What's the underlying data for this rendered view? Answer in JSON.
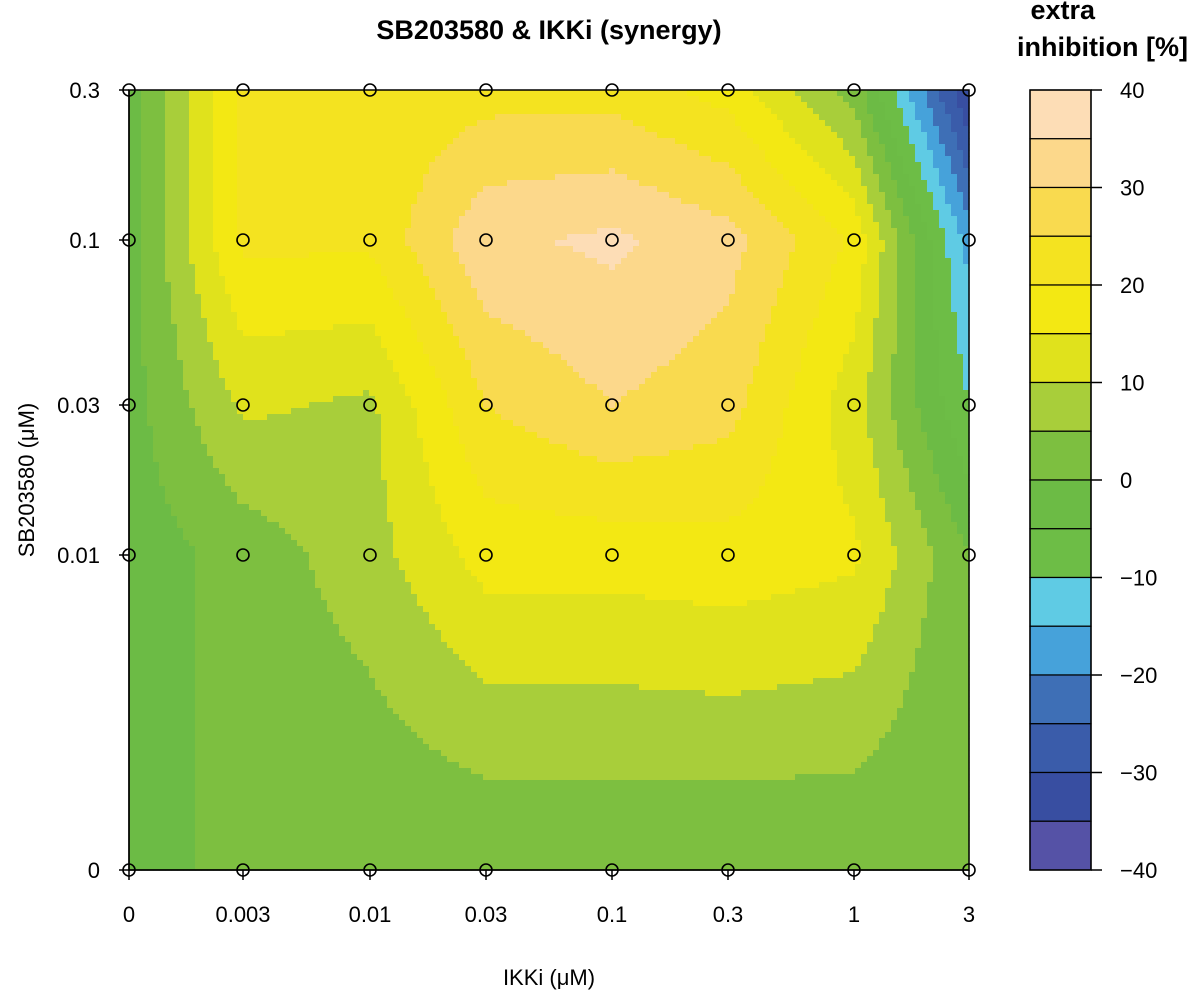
{
  "chart_data": {
    "type": "heatmap",
    "subtype": "filled-contour",
    "title": "SB203580 & IKKi (synergy)",
    "xlabel": "IKKi (μM)",
    "ylabel": "SB203580 (μM)",
    "x_ticks": [
      "0",
      "0.003",
      "0.01",
      "0.03",
      "0.1",
      "0.3",
      "1",
      "3"
    ],
    "y_ticks": [
      "0",
      "0.01",
      "0.03",
      "0.1",
      "0.3"
    ],
    "y_tick_order": "bottom-to-top",
    "z_grid_rows_bottom_to_top": [
      [
        0,
        0,
        0,
        0,
        0,
        0,
        0,
        0
      ],
      [
        -3,
        2,
        8,
        17,
        17,
        18,
        16,
        0
      ],
      [
        -2,
        11,
        9,
        25,
        30,
        27,
        12,
        -10
      ],
      [
        -2,
        21,
        21,
        34,
        36,
        32,
        19,
        -17
      ],
      [
        -3,
        21,
        21,
        23,
        23,
        18,
        3,
        -35
      ]
    ],
    "colorbar": {
      "title": [
        "extra",
        "inhibition [%]"
      ],
      "ticks": [
        "40",
        "30",
        "20",
        "10",
        "0",
        "−10",
        "−20",
        "−30",
        "−40"
      ],
      "range": [
        -40,
        40
      ],
      "step": 5
    },
    "levels": [
      {
        "from": 35,
        "to": 40,
        "color": "#FDDDB6"
      },
      {
        "from": 30,
        "to": 35,
        "color": "#FCD88B"
      },
      {
        "from": 25,
        "to": 30,
        "color": "#F9DA4F"
      },
      {
        "from": 20,
        "to": 25,
        "color": "#F4E320"
      },
      {
        "from": 15,
        "to": 20,
        "color": "#F3E813"
      },
      {
        "from": 10,
        "to": 15,
        "color": "#E0E21C"
      },
      {
        "from": 5,
        "to": 10,
        "color": "#A8CE3A"
      },
      {
        "from": 0,
        "to": 5,
        "color": "#7DBF40"
      },
      {
        "from": -5,
        "to": 0,
        "color": "#6CBB45"
      },
      {
        "from": -10,
        "to": -5,
        "color": "#6DBD46"
      },
      {
        "from": -15,
        "to": -10,
        "color": "#5FCBE4"
      },
      {
        "from": -20,
        "to": -15,
        "color": "#46A2DA"
      },
      {
        "from": -25,
        "to": -20,
        "color": "#3E6FB6"
      },
      {
        "from": -30,
        "to": -25,
        "color": "#3A5CAA"
      },
      {
        "from": -35,
        "to": -30,
        "color": "#384EA1"
      },
      {
        "from": -40,
        "to": -35,
        "color": "#5552A6"
      }
    ],
    "grid": false
  }
}
